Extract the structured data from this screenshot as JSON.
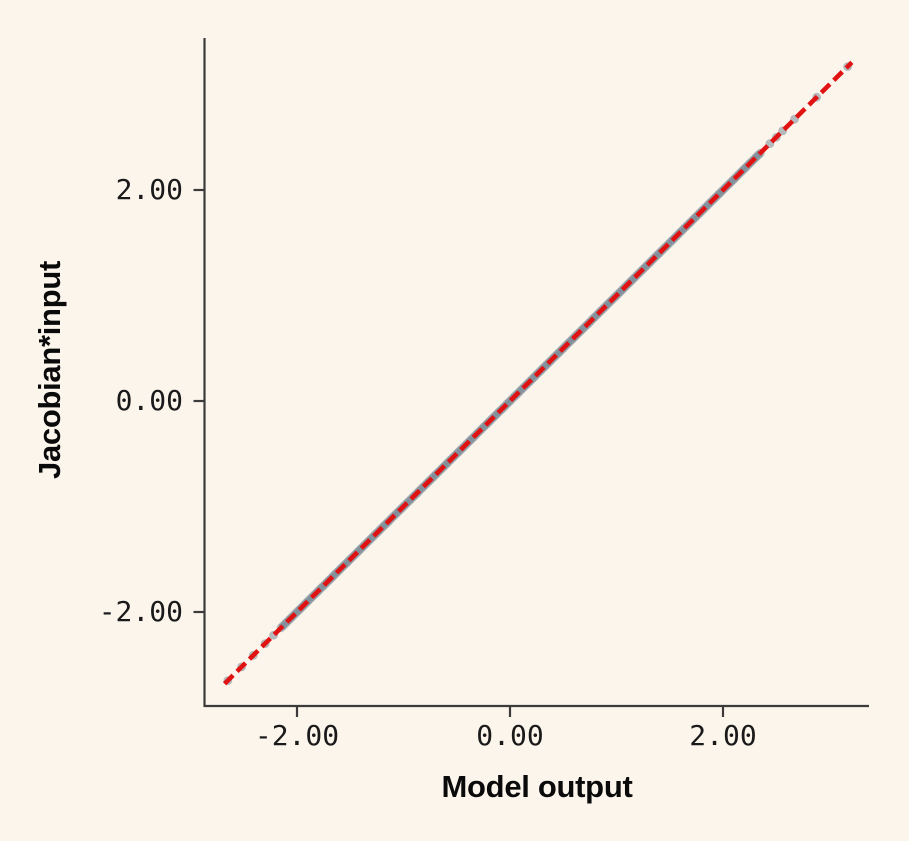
{
  "page": {
    "background_color": "#fcf5ec"
  },
  "chart_data": {
    "type": "scatter",
    "title": "",
    "xlabel": "Model output",
    "ylabel": "Jacobian*input",
    "x_tick_labels": [
      "-2.00",
      "0.00",
      "2.00"
    ],
    "x_tick_values": [
      -2,
      0,
      2
    ],
    "y_tick_labels": [
      "2.00",
      "0.00",
      "-2.00"
    ],
    "y_tick_values": [
      2,
      0,
      -2
    ],
    "xlim": [
      -2.87,
      3.37
    ],
    "ylim": [
      -2.88,
      3.44
    ],
    "grid": false,
    "legend": false,
    "relation": "all points lie on the identity line y = x",
    "dense_band": {
      "x_from": -2.15,
      "x_to": 2.35,
      "point_count": 230
    },
    "sparse_points_x": [
      -2.65,
      -2.52,
      -2.41,
      -2.3,
      -2.22,
      2.44,
      2.5,
      2.56,
      2.67,
      2.88,
      3.17
    ],
    "identity_line": {
      "x_from": -2.68,
      "x_to": 3.21,
      "style": "dashed",
      "color": "#e01212"
    },
    "marker_color": "#6e7f8d",
    "marker_opacity": 0.5,
    "axis_color": "#3b3b3b"
  }
}
